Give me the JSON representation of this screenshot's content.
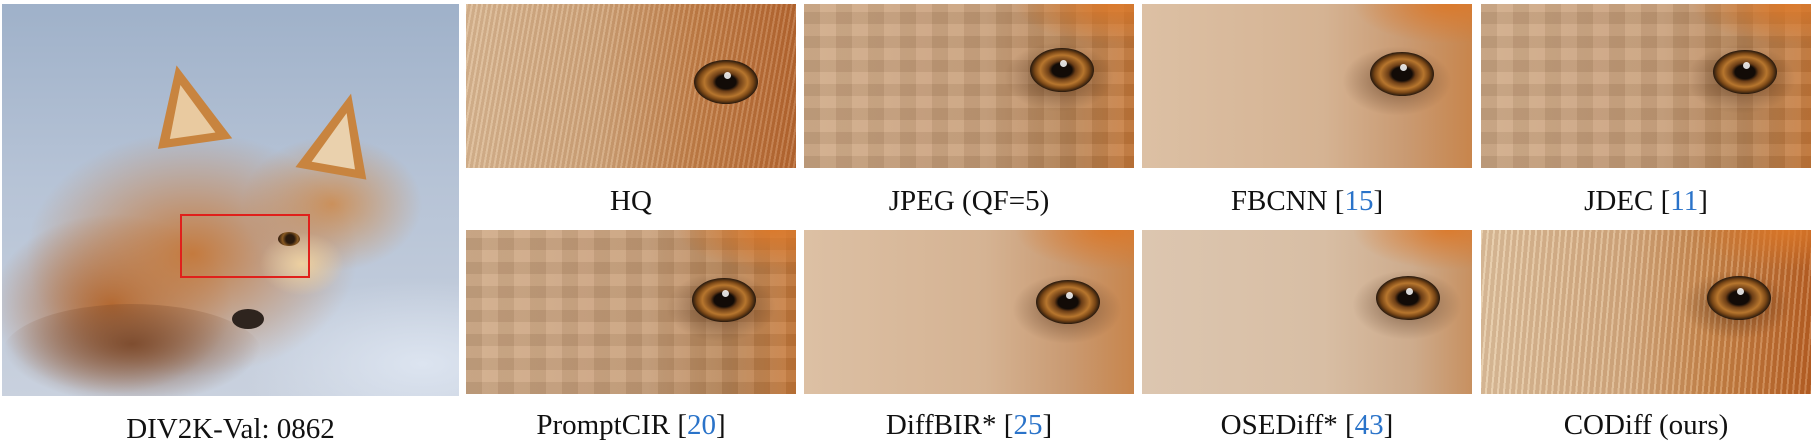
{
  "main_image": {
    "caption": "DIV2K-Val: 0862"
  },
  "panels": [
    {
      "id": "hq",
      "name": "HQ",
      "ref": ""
    },
    {
      "id": "jpeg",
      "name": "JPEG (QF=5)",
      "ref": ""
    },
    {
      "id": "fbcnn",
      "name": "FBCNN [",
      "ref": "15"
    },
    {
      "id": "jdec",
      "name": "JDEC [",
      "ref": "11"
    },
    {
      "id": "promptcir",
      "name": "PromptCIR [",
      "ref": "20"
    },
    {
      "id": "diffbir",
      "name": "DiffBIR* [",
      "ref": "25"
    },
    {
      "id": "osediff",
      "name": "OSEDiff* [",
      "ref": "43"
    },
    {
      "id": "codiff",
      "name": "CODiff (ours)",
      "ref": ""
    }
  ],
  "closing_bracket": "]",
  "colors": {
    "zoom_box": "#e0201b",
    "reference_link": "#2a73c9"
  }
}
